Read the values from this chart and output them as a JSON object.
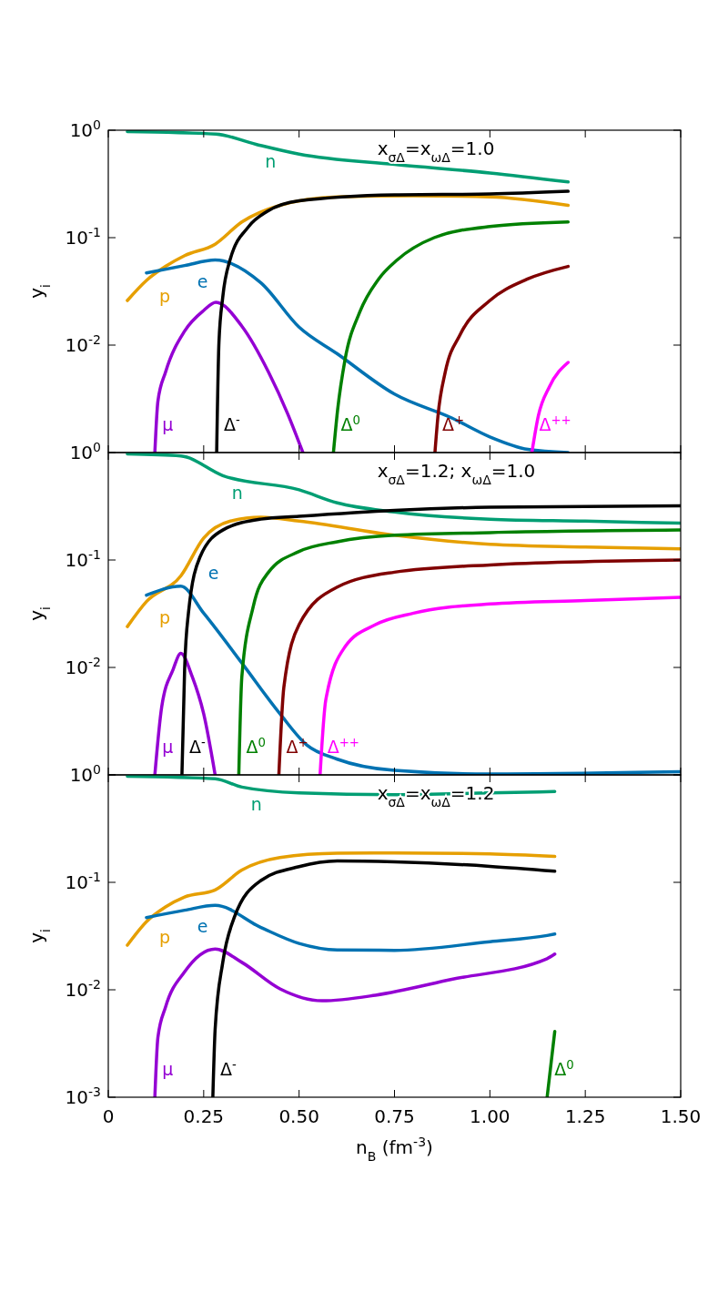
{
  "chart_data": [
    {
      "type": "line",
      "title": "x$_{σΔ}$=x$_{ωΔ}$=1.0",
      "ylabel": "y$_{i}$",
      "log": "y",
      "xlim": [
        0,
        1.5
      ],
      "ylim": [
        0.001,
        1
      ],
      "xticks": [
        0,
        0.25,
        0.5,
        0.75,
        1.0,
        1.25,
        1.5
      ],
      "yticks": [
        {
          "value": 1,
          "label": "10$^{0}$"
        },
        {
          "value": 0.1,
          "label": "10$^{-1}$"
        },
        {
          "value": 0.01,
          "label": "10$^{-2}$"
        },
        {
          "value": 0.001,
          "label": null
        }
      ],
      "tick_labels": "y",
      "series": [
        {
          "name": "n",
          "color": "#009e73",
          "x": [
            0.05,
            0.282,
            0.387,
            0.5,
            0.75,
            1.0,
            1.205
          ],
          "values": [
            0.97,
            0.92,
            0.74,
            0.6,
            0.48,
            0.4,
            0.33
          ]
        },
        {
          "name": "p",
          "color": "#e69f00",
          "x": [
            0.05,
            0.1,
            0.15,
            0.2,
            0.28,
            0.35,
            0.45,
            0.6,
            0.8,
            1.0,
            1.205
          ],
          "values": [
            0.026,
            0.04,
            0.054,
            0.068,
            0.087,
            0.14,
            0.2,
            0.24,
            0.245,
            0.24,
            0.2
          ]
        },
        {
          "name": "e",
          "color": "#0072b2",
          "x": [
            0.1,
            0.2,
            0.28,
            0.4,
            0.5,
            0.6,
            0.75,
            0.9,
            1.0,
            1.1,
            1.205
          ],
          "values": [
            0.047,
            0.055,
            0.062,
            0.038,
            0.0147,
            0.0083,
            0.0035,
            0.0021,
            0.0014,
            0.00107,
            0.001
          ]
        },
        {
          "name": "μ",
          "color": "#9400d3",
          "x": [
            0.122,
            0.13,
            0.15,
            0.2,
            0.25,
            0.282,
            0.35,
            0.42,
            0.47,
            0.51
          ],
          "values": [
            0.001,
            0.003,
            0.0056,
            0.0135,
            0.021,
            0.025,
            0.015,
            0.0056,
            0.0023,
            0.001
          ]
        },
        {
          "name": "Δ$^{-}$",
          "color": "#000000",
          "x": [
            0.284,
            0.29,
            0.3,
            0.319,
            0.368,
            0.416,
            0.5,
            0.75,
            1.0,
            1.205
          ],
          "values": [
            0.001,
            0.0106,
            0.028,
            0.062,
            0.127,
            0.175,
            0.22,
            0.25,
            0.255,
            0.27
          ]
        },
        {
          "name": "Δ$^{0}$",
          "color": "#008000",
          "x": [
            0.59,
            0.601,
            0.62,
            0.659,
            0.708,
            0.757,
            0.854,
            1.0,
            1.205
          ],
          "values": [
            0.001,
            0.0025,
            0.0072,
            0.0203,
            0.041,
            0.062,
            0.1,
            0.127,
            0.14
          ]
        },
        {
          "name": "Δ$^{+}$",
          "color": "#800000",
          "x": [
            0.856,
            0.864,
            0.883,
            0.922,
            1.0,
            1.097,
            1.205
          ],
          "values": [
            0.001,
            0.0022,
            0.0056,
            0.0125,
            0.026,
            0.041,
            0.054
          ]
        },
        {
          "name": "Δ$^{++}$",
          "color": "#ff00ff",
          "x": [
            1.11,
            1.127,
            1.156,
            1.205
          ],
          "values": [
            0.001,
            0.0022,
            0.0041,
            0.0069
          ]
        }
      ]
    },
    {
      "type": "line",
      "title": "x$_{σΔ}$=1.2; x$_{ωΔ}$=1.0",
      "ylabel": "y$_{i}$",
      "log": "y",
      "xlim": [
        0,
        1.5
      ],
      "ylim": [
        0.001,
        1
      ],
      "xticks": [
        0,
        0.25,
        0.5,
        0.75,
        1.0,
        1.25,
        1.5
      ],
      "yticks": [
        {
          "value": 1,
          "label": "10$^{0}$"
        },
        {
          "value": 0.1,
          "label": "10$^{-1}$"
        },
        {
          "value": 0.01,
          "label": "10$^{-2}$"
        },
        {
          "value": 0.001,
          "label": null
        }
      ],
      "tick_labels": "y",
      "series": [
        {
          "name": "n",
          "color": "#009e73",
          "x": [
            0.05,
            0.19,
            0.3,
            0.5,
            0.6,
            0.75,
            1.0,
            1.25,
            1.5
          ],
          "values": [
            0.97,
            0.93,
            0.61,
            0.45,
            0.34,
            0.28,
            0.24,
            0.23,
            0.22
          ]
        },
        {
          "name": "p",
          "color": "#e69f00",
          "x": [
            0.05,
            0.1,
            0.19,
            0.25,
            0.32,
            0.4,
            0.5,
            0.75,
            1.0,
            1.25,
            1.5
          ],
          "values": [
            0.024,
            0.041,
            0.071,
            0.16,
            0.23,
            0.25,
            0.23,
            0.17,
            0.14,
            0.132,
            0.127
          ]
        },
        {
          "name": "e",
          "color": "#0072b2",
          "x": [
            0.1,
            0.19,
            0.25,
            0.35,
            0.45,
            0.52,
            0.6,
            0.75,
            1.0,
            1.5
          ],
          "values": [
            0.047,
            0.057,
            0.032,
            0.011,
            0.0037,
            0.0019,
            0.0014,
            0.0011,
            0.00102,
            0.00107
          ]
        },
        {
          "name": "μ",
          "color": "#9400d3",
          "x": [
            0.122,
            0.14,
            0.17,
            0.19,
            0.22,
            0.25,
            0.28
          ],
          "values": [
            0.001,
            0.0043,
            0.0096,
            0.0135,
            0.0082,
            0.0037,
            0.001
          ]
        },
        {
          "name": "Δ$^{-}$",
          "color": "#000000",
          "x": [
            0.193,
            0.2,
            0.21,
            0.24,
            0.3,
            0.4,
            0.5,
            0.75,
            1.0,
            1.5
          ],
          "values": [
            0.001,
            0.0096,
            0.032,
            0.106,
            0.19,
            0.24,
            0.255,
            0.29,
            0.31,
            0.32
          ]
        },
        {
          "name": "Δ$^{0}$",
          "color": "#008000",
          "x": [
            0.342,
            0.35,
            0.38,
            0.42,
            0.5,
            0.6,
            0.75,
            1.0,
            1.5
          ],
          "values": [
            0.001,
            0.0082,
            0.037,
            0.077,
            0.12,
            0.148,
            0.17,
            0.18,
            0.19
          ]
        },
        {
          "name": "Δ$^{+}$",
          "color": "#800000",
          "x": [
            0.447,
            0.46,
            0.5,
            0.6,
            0.75,
            1.0,
            1.5
          ],
          "values": [
            0.001,
            0.0065,
            0.025,
            0.056,
            0.077,
            0.09,
            0.1
          ]
        },
        {
          "name": "Δ$^{++}$",
          "color": "#ff00ff",
          "x": [
            0.555,
            0.57,
            0.62,
            0.7,
            0.8,
            1.0,
            1.25,
            1.5
          ],
          "values": [
            0.001,
            0.005,
            0.0155,
            0.025,
            0.032,
            0.039,
            0.042,
            0.045
          ]
        }
      ]
    },
    {
      "type": "line",
      "title": "x$_{σΔ}$=x$_{ωΔ}$=1.2",
      "ylabel": "y$_{i}$",
      "xlabel": "n$_{B}$ (fm$^{-3}$)",
      "log": "y",
      "xlim": [
        0,
        1.5
      ],
      "ylim": [
        0.001,
        1
      ],
      "xticks": [
        0,
        0.25,
        {
          "value": 0.5,
          "label": "0.50"
        },
        0.75,
        {
          "value": 1.0,
          "label": "1.00"
        },
        1.25,
        {
          "value": 1.5,
          "label": "1.50"
        }
      ],
      "yticks": [
        {
          "value": 1,
          "label": "10$^{0}$"
        },
        {
          "value": 0.1,
          "label": "10$^{-1}$"
        },
        {
          "value": 0.01,
          "label": "10$^{-2}$"
        },
        {
          "value": 0.001,
          "label": "10$^{-3}$"
        }
      ],
      "series": [
        {
          "name": "n",
          "color": "#009e73",
          "x": [
            0.05,
            0.28,
            0.35,
            0.5,
            0.75,
            1.0,
            1.17
          ],
          "values": [
            0.97,
            0.92,
            0.77,
            0.68,
            0.655,
            0.68,
            0.7
          ]
        },
        {
          "name": "p",
          "color": "#e69f00",
          "x": [
            0.05,
            0.1,
            0.15,
            0.2,
            0.28,
            0.35,
            0.45,
            0.6,
            0.75,
            1.0,
            1.17
          ],
          "values": [
            0.026,
            0.043,
            0.059,
            0.073,
            0.085,
            0.13,
            0.17,
            0.187,
            0.188,
            0.184,
            0.174
          ]
        },
        {
          "name": "e",
          "color": "#0072b2",
          "x": [
            0.1,
            0.2,
            0.28,
            0.4,
            0.5,
            0.6,
            0.75,
            1.0,
            1.15,
            1.17
          ],
          "values": [
            0.047,
            0.055,
            0.061,
            0.038,
            0.027,
            0.0235,
            0.0233,
            0.028,
            0.032,
            0.033
          ]
        },
        {
          "name": "μ",
          "color": "#9400d3",
          "x": [
            0.122,
            0.13,
            0.15,
            0.2,
            0.28,
            0.35,
            0.45,
            0.56,
            0.7,
            0.9,
            1.15,
            1.17
          ],
          "values": [
            0.001,
            0.0036,
            0.0069,
            0.0147,
            0.024,
            0.018,
            0.0102,
            0.0079,
            0.0089,
            0.0125,
            0.0195,
            0.0215
          ]
        },
        {
          "name": "Δ$^{-}$",
          "color": "#000000",
          "x": [
            0.274,
            0.28,
            0.3,
            0.33,
            0.4,
            0.5,
            0.6,
            0.75,
            1.0,
            1.17
          ],
          "values": [
            0.001,
            0.0043,
            0.018,
            0.047,
            0.104,
            0.14,
            0.158,
            0.155,
            0.141,
            0.127
          ]
        },
        {
          "name": "Δ$^{0}$",
          "color": "#008000",
          "x": [
            1.15,
            1.17
          ],
          "values": [
            0.001,
            0.0041
          ]
        }
      ]
    }
  ]
}
